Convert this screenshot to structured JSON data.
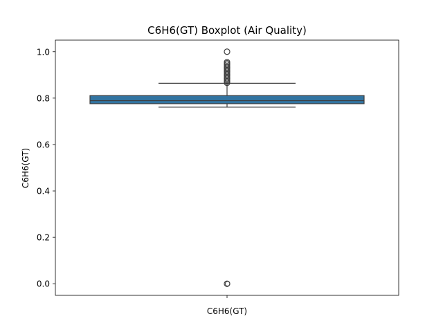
{
  "chart_data": {
    "type": "boxplot",
    "title": "C6H6(GT) Boxplot (Air Quality)",
    "xlabel": "",
    "ylabel": "C6H6(GT)",
    "categories": [
      "C6H6(GT)"
    ],
    "ylim": [
      -0.05,
      1.05
    ],
    "yticks": [
      0.0,
      0.2,
      0.4,
      0.6,
      0.8,
      1.0
    ],
    "ytick_labels": [
      "0.0",
      "0.2",
      "0.4",
      "0.6",
      "0.8",
      "1.0"
    ],
    "grid": false,
    "legend": "none",
    "box": {
      "q1": 0.776,
      "median": 0.789,
      "q3": 0.811,
      "whisker_low": 0.761,
      "whisker_high": 0.864
    },
    "outliers_high": [
      0.866,
      0.872,
      0.878,
      0.884,
      0.89,
      0.896,
      0.902,
      0.908,
      0.914,
      0.92,
      0.926,
      0.932,
      0.938,
      0.944,
      0.95,
      0.955,
      1.0
    ],
    "outliers_low": [
      0.0
    ],
    "box_color": "#3274a1",
    "line_color": "#3d3d3d"
  }
}
